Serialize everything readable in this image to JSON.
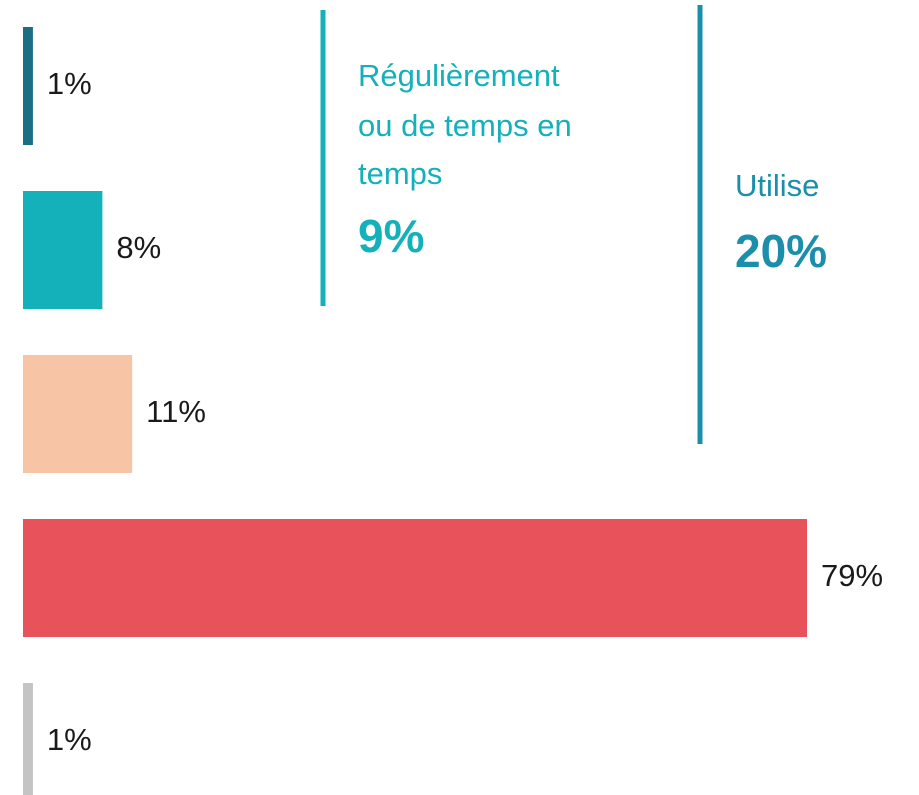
{
  "chart_data": {
    "type": "hbar",
    "values": [
      1,
      8,
      11,
      79,
      1
    ],
    "value_labels": [
      "1%",
      "8%",
      "11%",
      "79%",
      "1%"
    ],
    "colors": [
      "#1b6f82",
      "#15b1bb",
      "#f7c4a6",
      "#e8525a",
      "#c4c4c4"
    ],
    "annotations": [
      {
        "text": [
          "Régulièrement",
          "ou de temps en",
          "temps"
        ],
        "emphasis": "9%",
        "color": "#15b1bb"
      },
      {
        "text": [
          "Utilise"
        ],
        "emphasis": "20%",
        "color": "#1b8eab"
      }
    ]
  }
}
